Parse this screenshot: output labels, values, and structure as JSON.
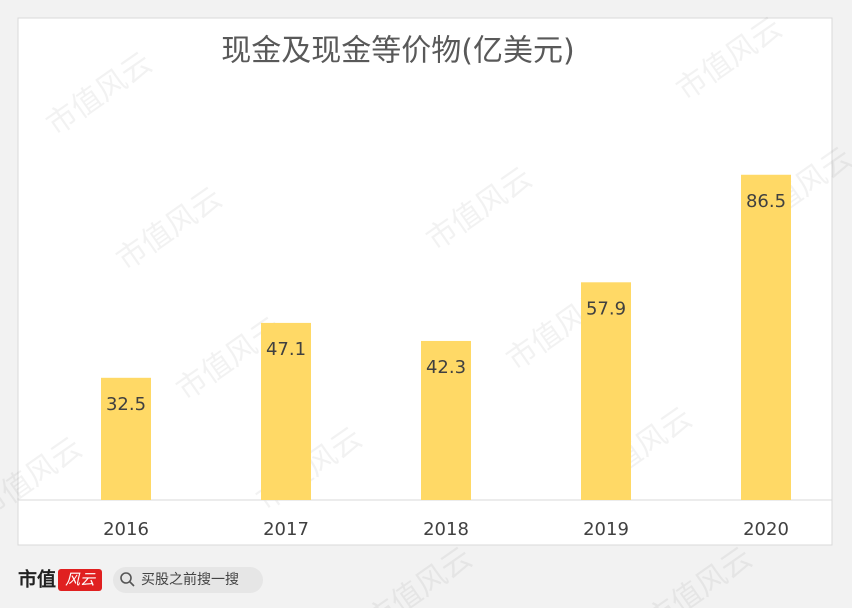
{
  "chart_data": {
    "type": "bar",
    "title": "现金及现金等价物(亿美元)",
    "categories": [
      "2016",
      "2017",
      "2018",
      "2019",
      "2020"
    ],
    "values": [
      32.5,
      47.1,
      42.3,
      57.9,
      86.5
    ],
    "color": "#ffd966",
    "data_labels": true
  },
  "watermark": "市值风云",
  "footer": {
    "brand": "市值",
    "brand_badge": "风云",
    "search_placeholder": "买股之前搜一搜"
  }
}
